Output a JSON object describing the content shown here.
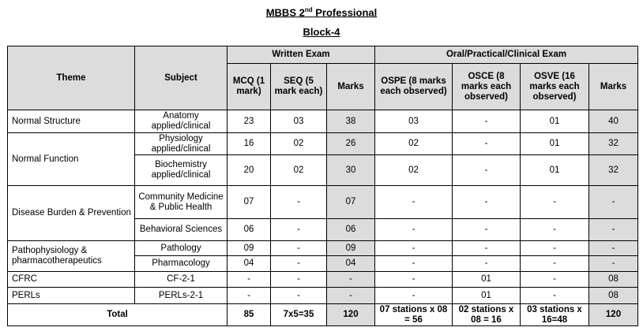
{
  "title_main": "MBBS 2",
  "title_sup": "nd",
  "title_rest": " Professional",
  "subtitle": "Block-4",
  "headers": {
    "theme": "Theme",
    "subject": "Subject",
    "written": "Written Exam",
    "oral": "Oral/Practical/Clinical Exam",
    "mcq": "MCQ (1 mark)",
    "seq": "SEQ (5 mark each)",
    "marks_written": "Marks",
    "ospe": "OSPE (8 marks each observed)",
    "osce": "OSCE (8 marks each observed)",
    "osve": "OSVE (16 marks each observed)",
    "marks_oral": "Marks"
  },
  "themes": [
    "Normal Structure",
    "Normal Function",
    "Disease Burden & Prevention",
    "Pathophysiology & pharmacotherapeutics",
    "CFRC",
    "PERLs"
  ],
  "rows": [
    {
      "subject": "Anatomy applied/clinical",
      "mcq": "23",
      "seq": "03",
      "marks_w": "38",
      "ospe": "03",
      "osce": "-",
      "osve": "01",
      "marks_o": "40"
    },
    {
      "subject": "Physiology applied/clinical",
      "mcq": "16",
      "seq": "02",
      "marks_w": "26",
      "ospe": "02",
      "osce": "-",
      "osve": "01",
      "marks_o": "32"
    },
    {
      "subject": "Biochemistry applied/clinical",
      "mcq": "20",
      "seq": "02",
      "marks_w": "30",
      "ospe": "02",
      "osce": "-",
      "osve": "01",
      "marks_o": "32"
    },
    {
      "subject": "Community Medicine & Public Health",
      "mcq": "07",
      "seq": "-",
      "marks_w": "07",
      "ospe": "-",
      "osce": "-",
      "osve": "-",
      "marks_o": "-"
    },
    {
      "subject": "Behavioral Sciences",
      "mcq": "06",
      "seq": "-",
      "marks_w": "06",
      "ospe": "-",
      "osce": "-",
      "osve": "-",
      "marks_o": "-"
    },
    {
      "subject": "Pathology",
      "mcq": "09",
      "seq": "-",
      "marks_w": "09",
      "ospe": "-",
      "osce": "-",
      "osve": "-",
      "marks_o": "-"
    },
    {
      "subject": "Pharmacology",
      "mcq": "04",
      "seq": "-",
      "marks_w": "04",
      "ospe": "-",
      "osce": "-",
      "osve": "-",
      "marks_o": "-"
    },
    {
      "subject": "CF-2-1",
      "mcq": "-",
      "seq": "-",
      "marks_w": "-",
      "ospe": "-",
      "osce": "01",
      "osve": "-",
      "marks_o": "08"
    },
    {
      "subject": "PERLs-2-1",
      "mcq": "-",
      "seq": "-",
      "marks_w": "-",
      "ospe": "-",
      "osce": "01",
      "osve": "-",
      "marks_o": "08"
    }
  ],
  "total": {
    "label": "Total",
    "mcq": "85",
    "seq": "7x5=35",
    "marks_w": "120",
    "ospe": "07 stations x 08 = 56",
    "osce": "02 stations x 08 = 16",
    "osve": "03 stations x 16=48",
    "marks_o": "120"
  }
}
